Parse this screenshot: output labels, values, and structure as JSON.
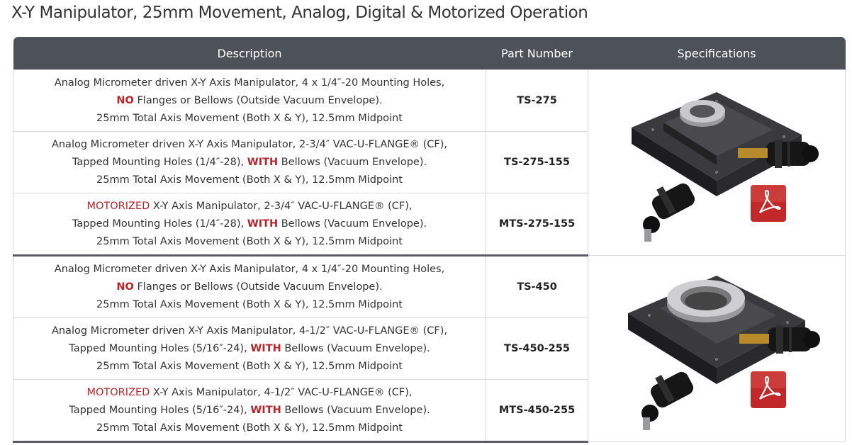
{
  "page": {
    "title": "X-Y Manipulator, 25mm Movement, Analog, Digital & Motorized Operation"
  },
  "table": {
    "headers": {
      "description": "Description",
      "part_number": "Part Number",
      "specifications": "Specifications"
    },
    "rows": [
      {
        "lines": [
          [
            {
              "t": "Analog Micrometer driven X-Y Axis Manipulator, 4 x 1/4″-20 Mounting Holes,",
              "s": ""
            }
          ],
          [
            {
              "t": "NO",
              "s": "hl"
            },
            {
              "t": " Flanges or Bellows (Outside Vacuum Envelope).",
              "s": ""
            }
          ],
          [
            {
              "t": "25mm Total Axis Movement (Both X & Y), 12.5mm Midpoint",
              "s": ""
            }
          ]
        ],
        "part": "TS-275"
      },
      {
        "lines": [
          [
            {
              "t": "Analog Micrometer driven X-Y Axis Manipulator, 2-3/4″ VAC-U-FLANGE® (CF),",
              "s": ""
            }
          ],
          [
            {
              "t": "Tapped Mounting Holes (1/4″-28), ",
              "s": ""
            },
            {
              "t": "WITH",
              "s": "hl"
            },
            {
              "t": " Bellows (Vacuum Envelope).",
              "s": ""
            }
          ],
          [
            {
              "t": "25mm Total Axis Movement (Both X & Y), 12.5mm Midpoint",
              "s": ""
            }
          ]
        ],
        "part": "TS-275-155"
      },
      {
        "lines": [
          [
            {
              "t": "MOTORIZED",
              "s": "hlr"
            },
            {
              "t": " X-Y Axis Manipulator, 2-3/4″ VAC-U-FLANGE® (CF),",
              "s": ""
            }
          ],
          [
            {
              "t": "Tapped Mounting Holes (1/4″-28), ",
              "s": ""
            },
            {
              "t": "WITH",
              "s": "hl"
            },
            {
              "t": " Bellows (Vacuum Envelope).",
              "s": ""
            }
          ],
          [
            {
              "t": "25mm Total Axis Movement (Both X & Y), 12.5mm Midpoint",
              "s": ""
            }
          ]
        ],
        "part": "MTS-275-155"
      },
      {
        "lines": [
          [
            {
              "t": "Analog Micrometer driven X-Y Axis Manipulator, 4 x 1/4″-20 Mounting Holes,",
              "s": ""
            }
          ],
          [
            {
              "t": "NO",
              "s": "hl"
            },
            {
              "t": " Flanges or Bellows (Outside Vacuum Envelope).",
              "s": ""
            }
          ],
          [
            {
              "t": "25mm Total Axis Movement (Both X & Y), 12.5mm Midpoint",
              "s": ""
            }
          ]
        ],
        "part": "TS-450"
      },
      {
        "lines": [
          [
            {
              "t": "Analog Micrometer driven X-Y Axis Manipulator, 4-1/2″ VAC-U-FLANGE® (CF),",
              "s": ""
            }
          ],
          [
            {
              "t": "Tapped Mounting Holes (5/16″-24), ",
              "s": ""
            },
            {
              "t": "WITH",
              "s": "hl"
            },
            {
              "t": " Bellows (Vacuum Envelope).",
              "s": ""
            }
          ],
          [
            {
              "t": "25mm Total Axis Movement (Both X & Y), 12.5mm Midpoint",
              "s": ""
            }
          ]
        ],
        "part": "TS-450-255"
      },
      {
        "lines": [
          [
            {
              "t": "MOTORIZED",
              "s": "hlr"
            },
            {
              "t": " X-Y Axis Manipulator, 4-1/2″ VAC-U-FLANGE® (CF),",
              "s": ""
            }
          ],
          [
            {
              "t": "Tapped Mounting Holes (5/16″-24), ",
              "s": ""
            },
            {
              "t": "WITH",
              "s": "hl"
            },
            {
              "t": " Bellows (Vacuum Envelope).",
              "s": ""
            }
          ],
          [
            {
              "t": "25mm Total Axis Movement (Both X & Y), 12.5mm Midpoint",
              "s": ""
            }
          ]
        ],
        "part": "MTS-450-255"
      }
    ],
    "spec_groups": [
      {
        "image": "xy-manipulator-275-photo",
        "icon": "pdf-icon"
      },
      {
        "image": "xy-manipulator-450-photo",
        "icon": "pdf-icon"
      }
    ]
  },
  "colors": {
    "header_bg": "#4d5158",
    "highlight": "#b3262e",
    "pdf_red": "#c0282a"
  }
}
